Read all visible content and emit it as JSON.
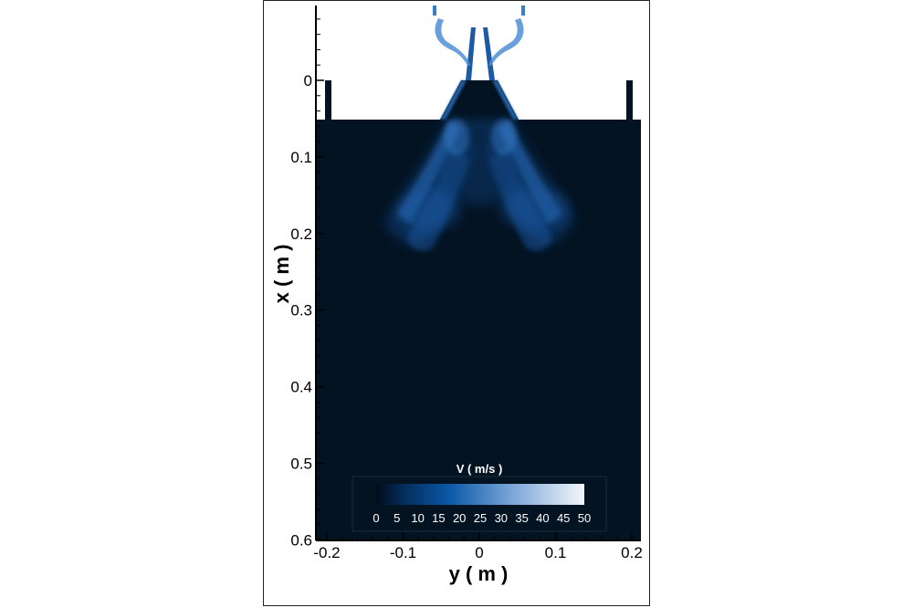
{
  "chart_data": {
    "type": "heatmap",
    "xlabel": "y ( m )",
    "ylabel": "x ( m )",
    "xlim": [
      -0.21,
      0.21
    ],
    "ylim": [
      0.6,
      -0.1
    ],
    "x_ticks": [
      "-0.2",
      "-0.1",
      "0",
      "0.1",
      "0.2"
    ],
    "y_ticks": [
      "0",
      "0.1",
      "0.2",
      "0.3",
      "0.4",
      "0.5",
      "0.6"
    ],
    "colorbar": {
      "title": "V ( m/s )",
      "min": 0,
      "max": 50,
      "labels": [
        "0",
        "5",
        "10",
        "15",
        "20",
        "25",
        "30",
        "35",
        "40",
        "45",
        "50"
      ],
      "colors": [
        "#020c1a",
        "#0a4f9c",
        "#f4f7fb"
      ]
    },
    "background_color": "#041322"
  }
}
